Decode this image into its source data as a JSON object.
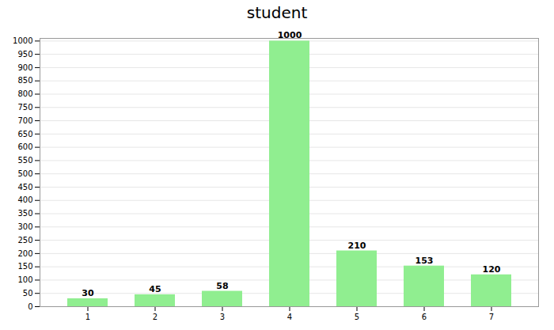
{
  "chart_data": {
    "type": "bar",
    "title": "student",
    "categories": [
      1,
      2,
      3,
      4,
      5,
      6,
      7
    ],
    "values": [
      30,
      45,
      58,
      1000,
      210,
      153,
      120
    ],
    "color": "#90EE90",
    "ylim": [
      0,
      1010
    ],
    "yticks": [
      0,
      50,
      100,
      150,
      200,
      250,
      300,
      350,
      400,
      450,
      500,
      550,
      600,
      650,
      700,
      750,
      800,
      850,
      900,
      950,
      1000
    ],
    "grid": true,
    "data_labels": true
  }
}
